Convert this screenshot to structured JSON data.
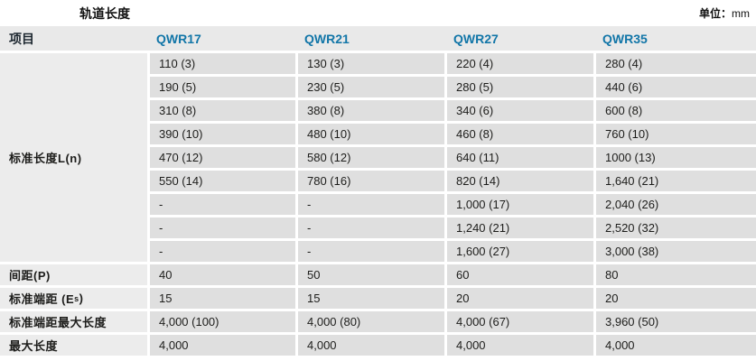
{
  "title": "轨道长度",
  "unit_label": "单位：",
  "unit_value": "mm",
  "colors": {
    "header_bg": "#e9e9e9",
    "cell_bg": "#dfdfdf",
    "label_bg": "#ececec",
    "accent_blue": "#1276a8",
    "text": "#1d1d1b"
  },
  "table": {
    "header": [
      "项目",
      "QWR17",
      "QWR21",
      "QWR27",
      "QWR35"
    ],
    "standard_length_label": "标准长度L(n)",
    "standard_length_rows": [
      [
        "110 (3)",
        "130 (3)",
        "220 (4)",
        "280 (4)"
      ],
      [
        "190 (5)",
        "230 (5)",
        "280 (5)",
        "440 (6)"
      ],
      [
        "310 (8)",
        "380 (8)",
        "340 (6)",
        "600 (8)"
      ],
      [
        "390 (10)",
        "480 (10)",
        "460 (8)",
        "760 (10)"
      ],
      [
        "470 (12)",
        "580 (12)",
        "640 (11)",
        "1000 (13)"
      ],
      [
        "550 (14)",
        "780 (16)",
        "820 (14)",
        "1,640 (21)"
      ],
      [
        "-",
        "-",
        "1,000 (17)",
        "2,040 (26)"
      ],
      [
        "-",
        "-",
        "1,240 (21)",
        "2,520 (32)"
      ],
      [
        "-",
        "-",
        "1,600 (27)",
        "3,000 (38)"
      ]
    ],
    "rows": [
      {
        "label": "间距(P)",
        "values": [
          "40",
          "50",
          "60",
          "80"
        ]
      },
      {
        "label_pre": "标准端距 (E",
        "label_sub": "s",
        "label_post": ")",
        "values": [
          "15",
          "15",
          "20",
          "20"
        ]
      },
      {
        "label": "标准端距最大长度",
        "values": [
          "4,000 (100)",
          "4,000 (80)",
          "4,000 (67)",
          "3,960 (50)"
        ]
      },
      {
        "label": "最大长度",
        "values": [
          "4,000",
          "4,000",
          "4,000",
          "4,000"
        ]
      }
    ]
  }
}
